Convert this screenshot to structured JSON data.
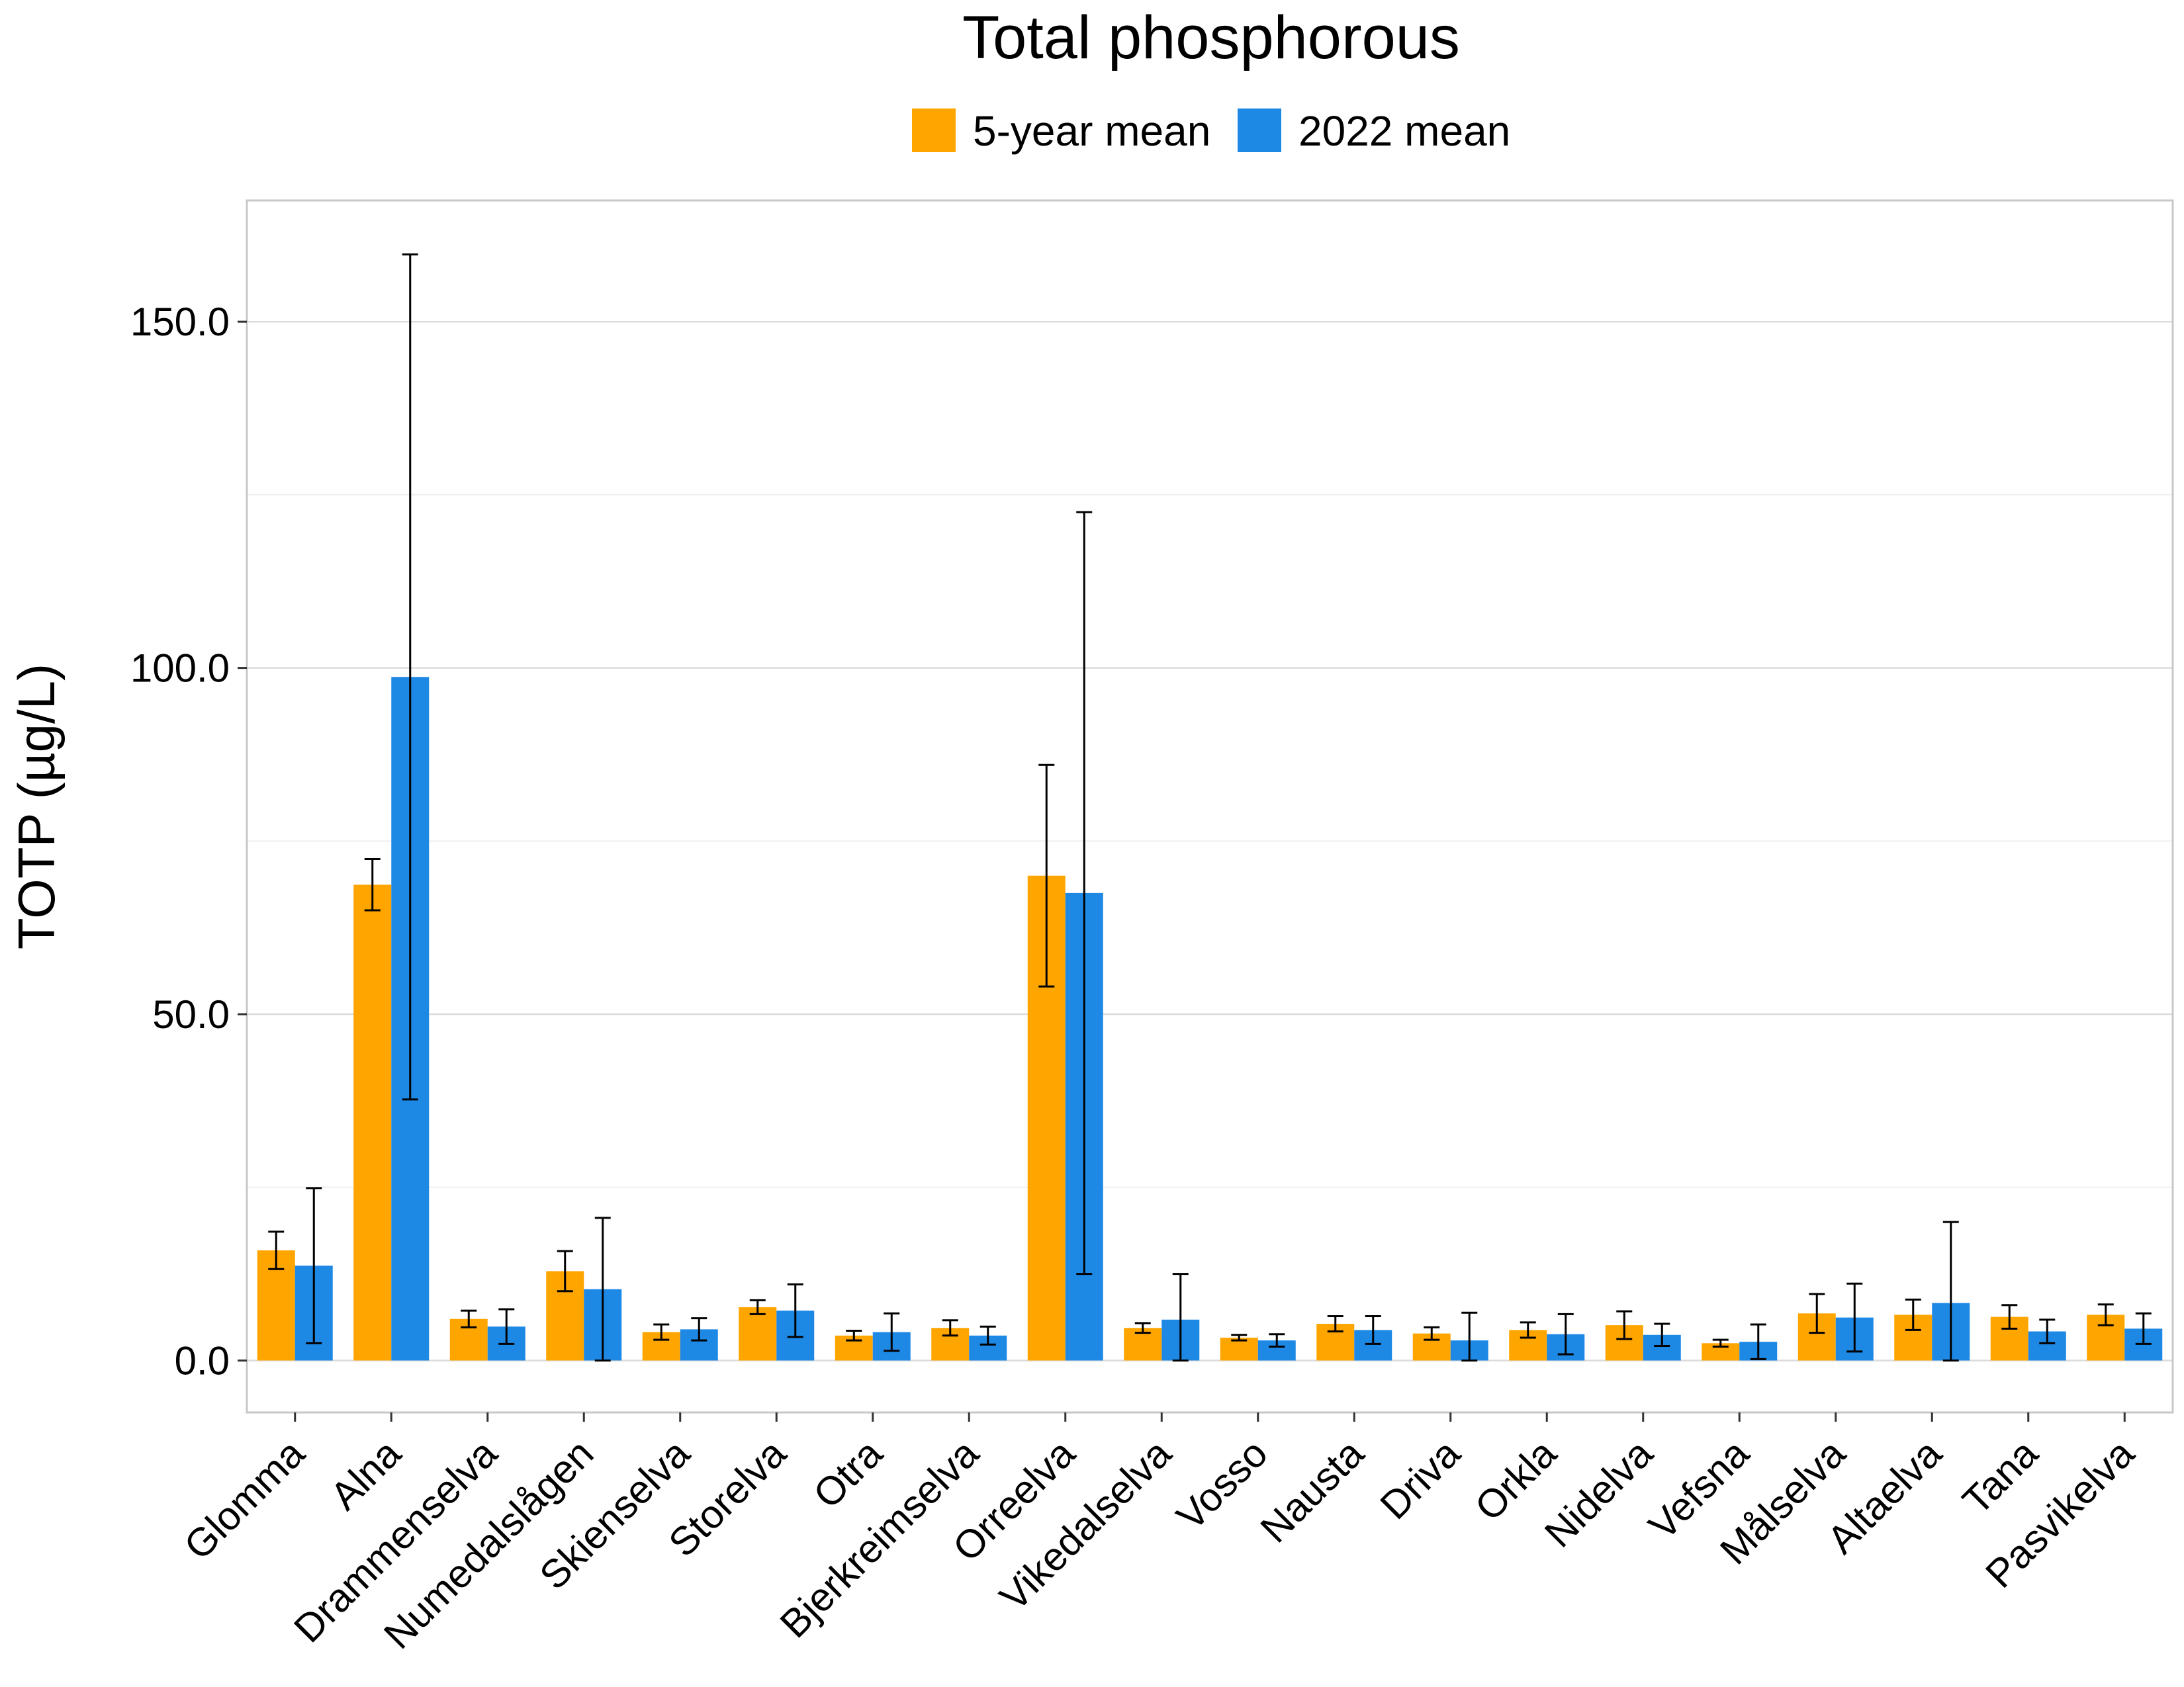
{
  "chart_data": {
    "type": "bar",
    "title": "Total phosphorous",
    "xlabel": "",
    "ylabel": "TOTP (µg/L)",
    "ylim": [
      -7.5,
      167.5
    ],
    "yticks": [
      0,
      50,
      100,
      150
    ],
    "ytick_labels": [
      "0.0",
      "50.0",
      "100.0",
      "150.0"
    ],
    "minor_gridlines": [
      25,
      75,
      125
    ],
    "grid": true,
    "legend_position": "top-center",
    "categories": [
      "Glomma",
      "Alna",
      "Drammenselva",
      "Numedalslågen",
      "Skienselva",
      "Storelva",
      "Otra",
      "Bjerkreimselva",
      "Orreelva",
      "Vikedalselva",
      "Vosso",
      "Nausta",
      "Driva",
      "Orkla",
      "Nidelva",
      "Vefsna",
      "Målselva",
      "Altaelva",
      "Tana",
      "Pasvikelva"
    ],
    "series": [
      {
        "name": "5-year mean",
        "color": "#FFA500",
        "values": [
          15.9,
          68.7,
          6.0,
          12.9,
          4.1,
          7.7,
          3.6,
          4.7,
          70.0,
          4.7,
          3.3,
          5.3,
          3.9,
          4.4,
          5.1,
          2.5,
          6.8,
          6.6,
          6.3,
          6.6
        ],
        "errors": [
          2.7,
          3.7,
          1.2,
          2.9,
          1.1,
          1.0,
          0.7,
          1.1,
          16.0,
          0.7,
          0.4,
          1.1,
          0.9,
          1.1,
          2.0,
          0.5,
          2.8,
          2.2,
          1.7,
          1.5
        ]
      },
      {
        "name": "2022 mean",
        "color": "#1E88E5",
        "values": [
          13.7,
          98.7,
          4.9,
          10.3,
          4.5,
          7.2,
          4.1,
          3.6,
          67.5,
          5.9,
          2.9,
          4.4,
          2.9,
          3.8,
          3.7,
          2.7,
          6.2,
          8.3,
          4.2,
          4.6
        ],
        "errors": [
          11.2,
          61.0,
          2.5,
          10.3,
          1.6,
          3.8,
          2.7,
          1.3,
          55.0,
          6.6,
          0.9,
          2.0,
          4.0,
          2.9,
          1.6,
          2.5,
          4.9,
          11.7,
          1.7,
          2.2
        ]
      }
    ]
  }
}
